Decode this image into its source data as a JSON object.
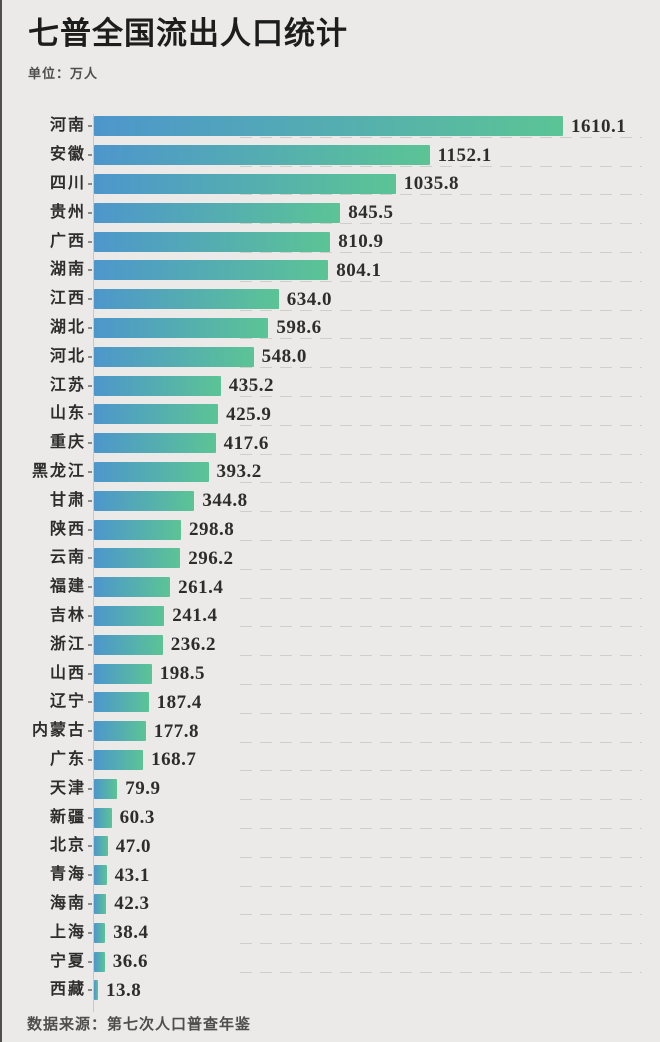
{
  "header": {
    "title": "七普全国流出人口统计",
    "unit_label": "单位：万人"
  },
  "footer": {
    "source_label": "数据来源：第七次人口普查年鉴"
  },
  "colors": {
    "background": "#ebeae8",
    "left_edge_strip": "#4f4f4f",
    "bar_gradient_start": "#4d96cc",
    "bar_gradient_end": "#5bc495",
    "axis_line": "#c9c8c6",
    "tick": "#8a8a88",
    "title_text": "#1d1d1d",
    "label_text": "#2d2d2d",
    "muted_text": "#4e4e4e"
  },
  "chart_data": {
    "type": "bar",
    "orientation": "horizontal",
    "title": "七普全国流出人口统计",
    "unit": "万人",
    "source": "第七次人口普查年鉴",
    "xlim": [
      0,
      1610.1
    ],
    "grid": "off",
    "legend": "none",
    "value_labels": "end-of-bar, one decimal",
    "categories": [
      "河南",
      "安徽",
      "四川",
      "贵州",
      "广西",
      "湖南",
      "江西",
      "湖北",
      "河北",
      "江苏",
      "山东",
      "重庆",
      "黑龙江",
      "甘肃",
      "陕西",
      "云南",
      "福建",
      "吉林",
      "浙江",
      "山西",
      "辽宁",
      "内蒙古",
      "广东",
      "天津",
      "新疆",
      "北京",
      "青海",
      "海南",
      "上海",
      "宁夏",
      "西藏"
    ],
    "values": [
      1610.1,
      1152.1,
      1035.8,
      845.5,
      810.9,
      804.1,
      634.0,
      598.6,
      548.0,
      435.2,
      425.9,
      417.6,
      393.2,
      344.8,
      298.8,
      296.2,
      261.4,
      241.4,
      236.2,
      198.5,
      187.4,
      177.8,
      168.7,
      79.9,
      60.3,
      47.0,
      43.1,
      42.3,
      38.4,
      36.6,
      13.8
    ]
  }
}
